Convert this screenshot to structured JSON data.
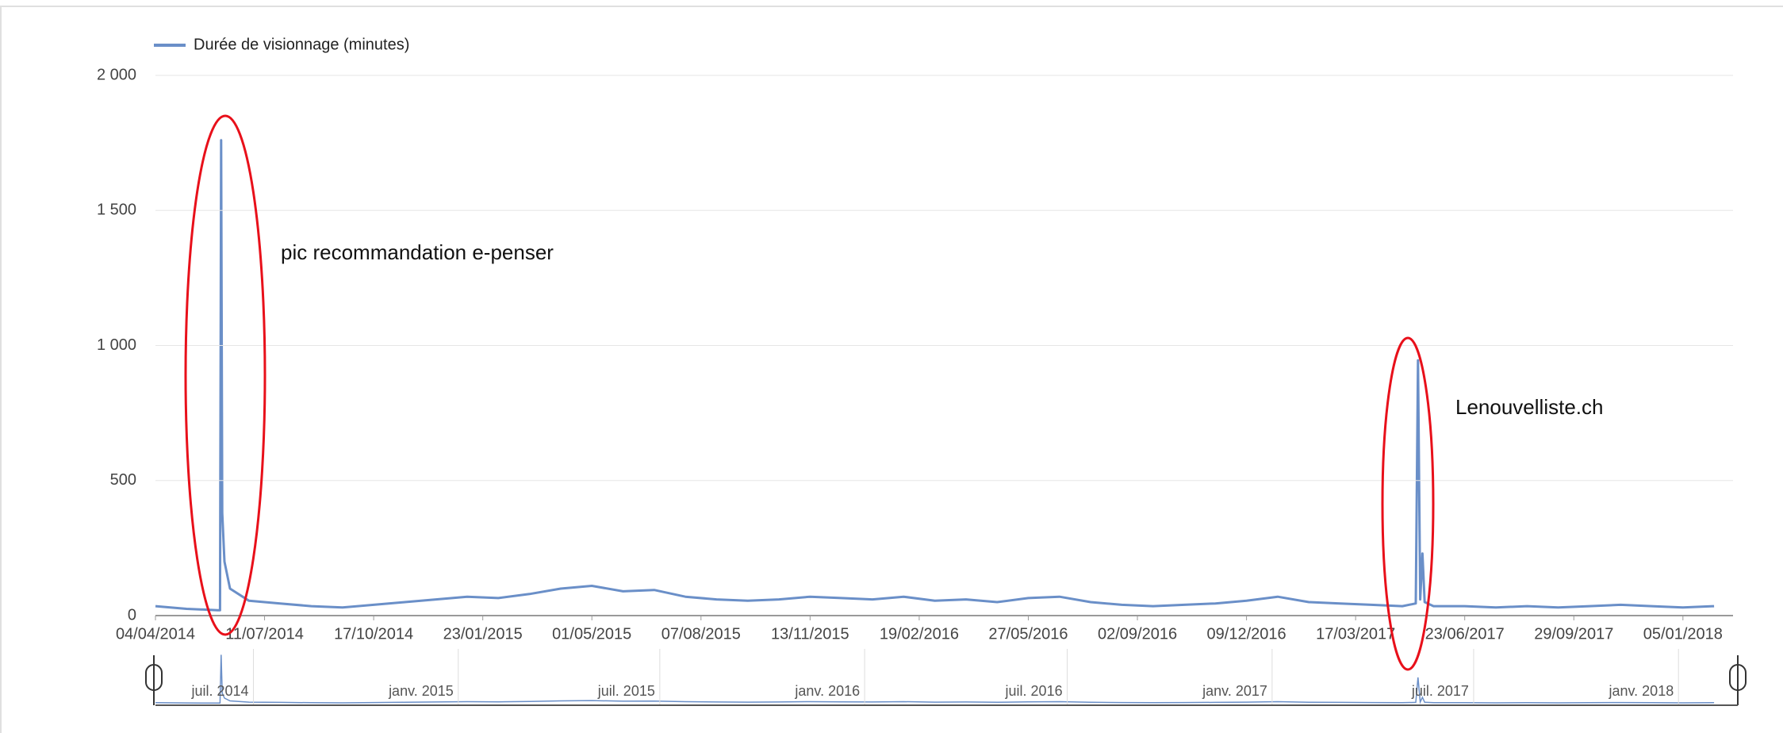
{
  "chart_data": {
    "type": "line",
    "series": [
      {
        "name": "Durée de visionnage (minutes)",
        "color": "#6a8fc8",
        "x": [
          "04/04/2014",
          "02/05/2014",
          "30/05/2014",
          "01/06/2014",
          "02/06/2014",
          "03/06/2014",
          "05/06/2014",
          "10/06/2014",
          "27/06/2014",
          "25/07/2014",
          "22/08/2014",
          "19/09/2014",
          "17/10/2014",
          "14/11/2014",
          "12/12/2014",
          "09/01/2015",
          "06/02/2015",
          "06/03/2015",
          "03/04/2015",
          "01/05/2015",
          "29/05/2015",
          "26/06/2015",
          "24/07/2015",
          "21/08/2015",
          "18/09/2015",
          "16/10/2015",
          "13/11/2015",
          "11/12/2015",
          "08/01/2016",
          "05/02/2016",
          "04/03/2016",
          "01/04/2016",
          "29/04/2016",
          "27/05/2016",
          "24/06/2016",
          "22/07/2016",
          "19/08/2016",
          "16/09/2016",
          "14/10/2016",
          "11/11/2016",
          "09/12/2016",
          "06/01/2017",
          "03/02/2017",
          "03/03/2017",
          "31/03/2017",
          "28/04/2017",
          "10/05/2017",
          "12/05/2017",
          "14/05/2017",
          "16/05/2017",
          "18/05/2017",
          "26/05/2017",
          "23/06/2017",
          "21/07/2017",
          "18/08/2017",
          "15/09/2017",
          "13/10/2017",
          "10/11/2017",
          "08/12/2017",
          "05/01/2018",
          "02/02/2018"
        ],
        "values": [
          35,
          25,
          20,
          20,
          1760,
          380,
          200,
          100,
          55,
          45,
          35,
          30,
          40,
          50,
          60,
          70,
          65,
          80,
          100,
          110,
          90,
          95,
          70,
          60,
          55,
          60,
          70,
          65,
          60,
          70,
          55,
          60,
          50,
          65,
          70,
          50,
          40,
          35,
          40,
          45,
          55,
          70,
          50,
          45,
          40,
          35,
          45,
          945,
          60,
          230,
          50,
          35,
          35,
          30,
          35,
          30,
          35,
          40,
          35,
          30,
          35
        ]
      }
    ],
    "xlim": [
      "04/04/2014",
      "19/02/2018"
    ],
    "xticks": [
      "04/04/2014",
      "11/07/2014",
      "17/10/2014",
      "23/01/2015",
      "01/05/2015",
      "07/08/2015",
      "13/11/2015",
      "19/02/2016",
      "27/05/2016",
      "02/09/2016",
      "09/12/2016",
      "17/03/2017",
      "23/06/2017",
      "29/09/2017",
      "05/01/2018"
    ],
    "ylim": [
      0,
      2000
    ],
    "yticks": [
      0,
      500,
      {
        "value": 1000,
        "label": "1 000"
      },
      {
        "value": 1500,
        "label": "1 500"
      },
      {
        "value": 2000,
        "label": "2 000"
      }
    ],
    "grid": true,
    "legend": "top-left",
    "annotations": [
      "pic recommandation e-penser",
      "Lenouvelliste.ch"
    ],
    "navigator_ticks": [
      {
        "value": "01/07/2014",
        "label": "juil. 2014"
      },
      {
        "value": "01/01/2015",
        "label": "janv. 2015"
      },
      {
        "value": "01/07/2015",
        "label": "juil. 2015"
      },
      {
        "value": "01/01/2016",
        "label": "janv. 2016"
      },
      {
        "value": "01/07/2016",
        "label": "juil. 2016"
      },
      {
        "value": "01/01/2017",
        "label": "janv. 2017"
      },
      {
        "value": "01/07/2017",
        "label": "juil. 2017"
      },
      {
        "value": "01/01/2018",
        "label": "janv. 2018"
      }
    ]
  }
}
